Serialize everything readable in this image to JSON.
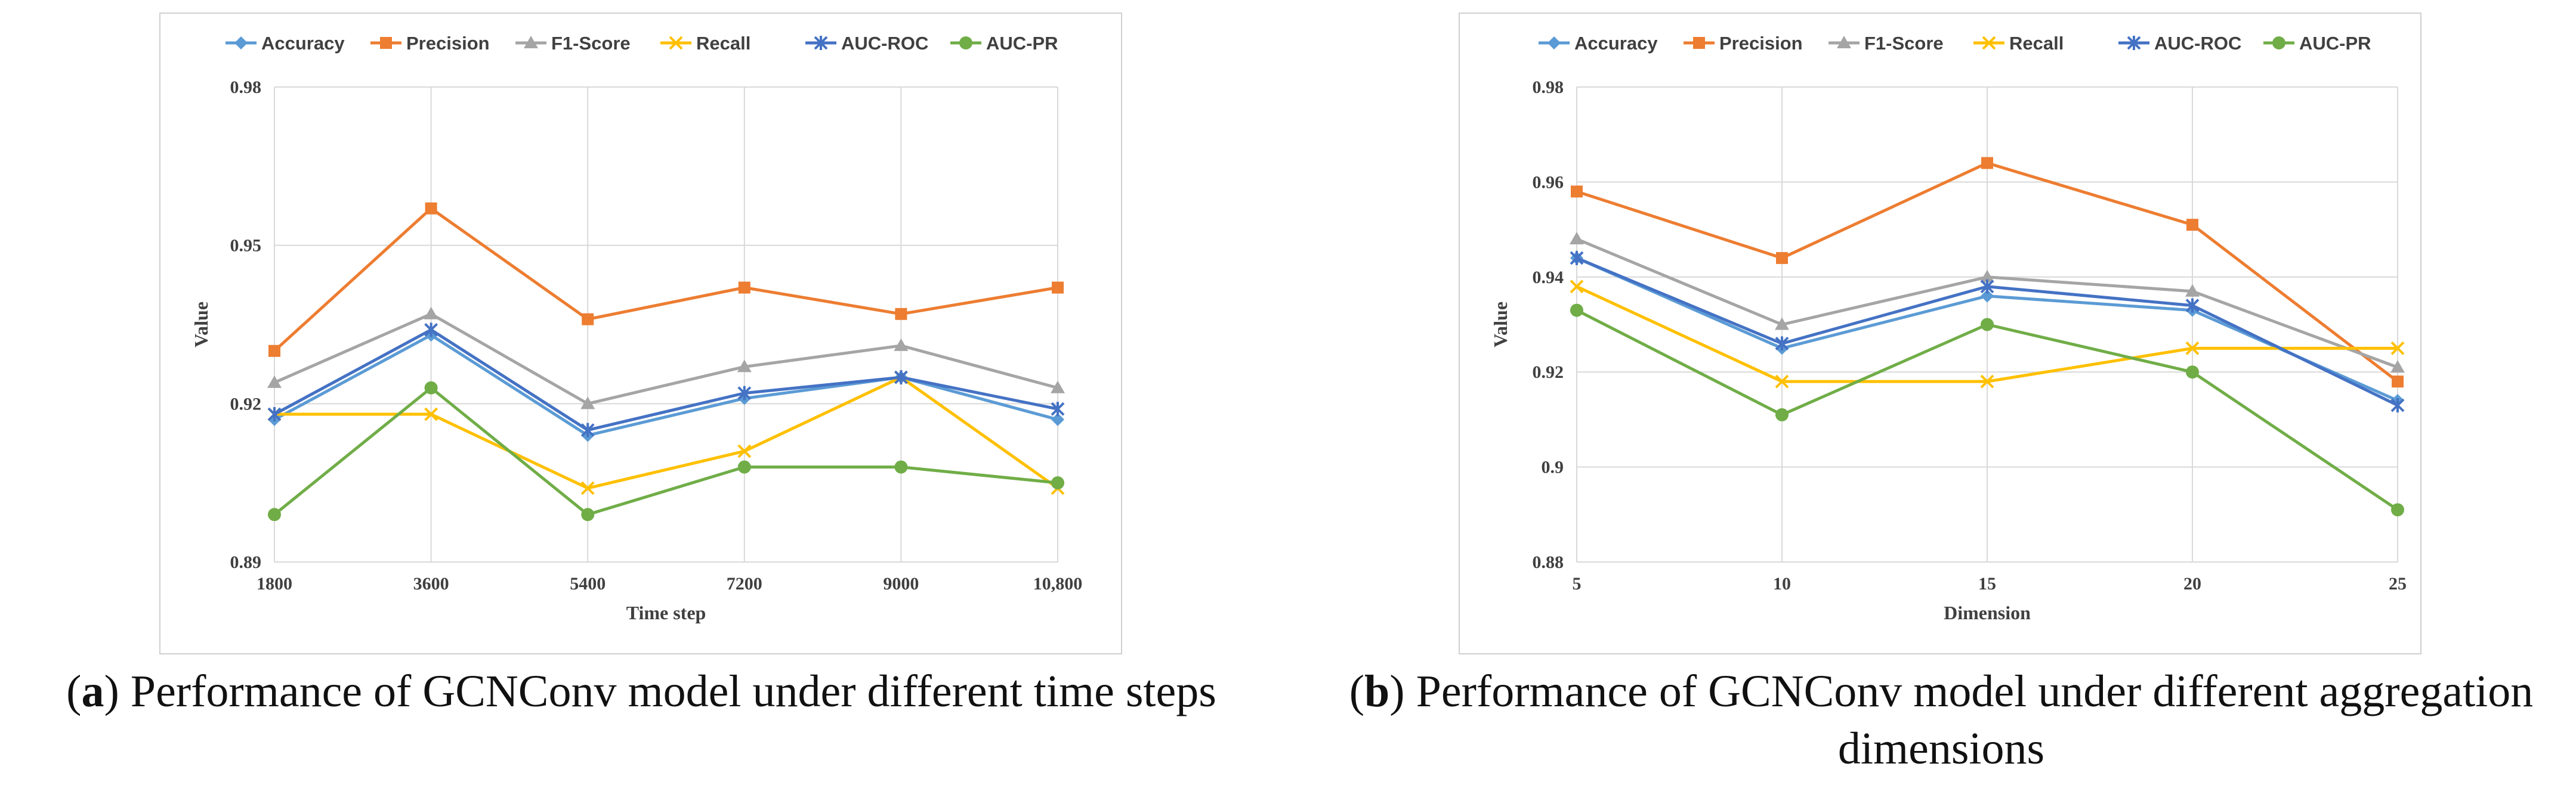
{
  "colors": {
    "accuracy": "#5B9BD5",
    "precision": "#ED7D31",
    "f1": "#A5A5A5",
    "recall": "#FFC000",
    "auc_roc": "#4472C4",
    "auc_pr": "#70AD47",
    "grid": "#D9D9D9",
    "frame": "#D0D0D0"
  },
  "chart_data": [
    {
      "type": "line",
      "ylabel": "Value",
      "xlabel": "Time step",
      "categories": [
        "1800",
        "3600",
        "5400",
        "7200",
        "9000",
        "10,800"
      ],
      "ylim": [
        0.89,
        0.98
      ],
      "yticks": [
        "0.89",
        "0.92",
        "0.95",
        "0.98"
      ],
      "ytick_values": [
        0.89,
        0.92,
        0.95,
        0.98
      ],
      "legend_position": "top",
      "series": [
        {
          "name": "Accuracy",
          "key": "accuracy",
          "marker": "diamond",
          "values": [
            0.917,
            0.933,
            0.914,
            0.921,
            0.925,
            0.917
          ]
        },
        {
          "name": "Precision",
          "key": "precision",
          "marker": "square",
          "values": [
            0.93,
            0.957,
            0.936,
            0.942,
            0.937,
            0.942
          ]
        },
        {
          "name": "F1-Score",
          "key": "f1",
          "marker": "triangle",
          "values": [
            0.924,
            0.937,
            0.92,
            0.927,
            0.931,
            0.923
          ]
        },
        {
          "name": "Recall",
          "key": "recall",
          "marker": "x",
          "values": [
            0.918,
            0.918,
            0.904,
            0.911,
            0.925,
            0.904
          ]
        },
        {
          "name": "AUC-ROC",
          "key": "auc_roc",
          "marker": "star",
          "values": [
            0.918,
            0.934,
            0.915,
            0.922,
            0.925,
            0.919
          ]
        },
        {
          "name": "AUC-PR",
          "key": "auc_pr",
          "marker": "circle",
          "values": [
            0.899,
            0.923,
            0.899,
            0.908,
            0.908,
            0.905
          ]
        }
      ]
    },
    {
      "type": "line",
      "ylabel": "Value",
      "xlabel": "Dimension",
      "categories": [
        "5",
        "10",
        "15",
        "20",
        "25"
      ],
      "ylim": [
        0.88,
        0.98
      ],
      "yticks": [
        "0.88",
        "0.9",
        "0.92",
        "0.94",
        "0.96",
        "0.98"
      ],
      "ytick_values": [
        0.88,
        0.9,
        0.92,
        0.94,
        0.96,
        0.98
      ],
      "legend_position": "top",
      "series": [
        {
          "name": "Accuracy",
          "key": "accuracy",
          "marker": "diamond",
          "values": [
            0.944,
            0.925,
            0.936,
            0.933,
            0.914
          ]
        },
        {
          "name": "Precision",
          "key": "precision",
          "marker": "square",
          "values": [
            0.958,
            0.944,
            0.964,
            0.951,
            0.918
          ]
        },
        {
          "name": "F1-Score",
          "key": "f1",
          "marker": "triangle",
          "values": [
            0.948,
            0.93,
            0.94,
            0.937,
            0.921
          ]
        },
        {
          "name": "Recall",
          "key": "recall",
          "marker": "x",
          "values": [
            0.938,
            0.918,
            0.918,
            0.925,
            0.925
          ]
        },
        {
          "name": "AUC-ROC",
          "key": "auc_roc",
          "marker": "star",
          "values": [
            0.944,
            0.926,
            0.938,
            0.934,
            0.913
          ]
        },
        {
          "name": "AUC-PR",
          "key": "auc_pr",
          "marker": "circle",
          "values": [
            0.933,
            0.911,
            0.93,
            0.92,
            0.891
          ]
        }
      ]
    }
  ],
  "captions": {
    "a": {
      "letter": "a",
      "open": "(",
      "close": ")",
      "text": " Performance of GCNConv model under different time steps"
    },
    "b": {
      "letter": "b",
      "open": "(",
      "close": ")",
      "text": " Performance of GCNConv model under different aggregation dimensions"
    }
  }
}
